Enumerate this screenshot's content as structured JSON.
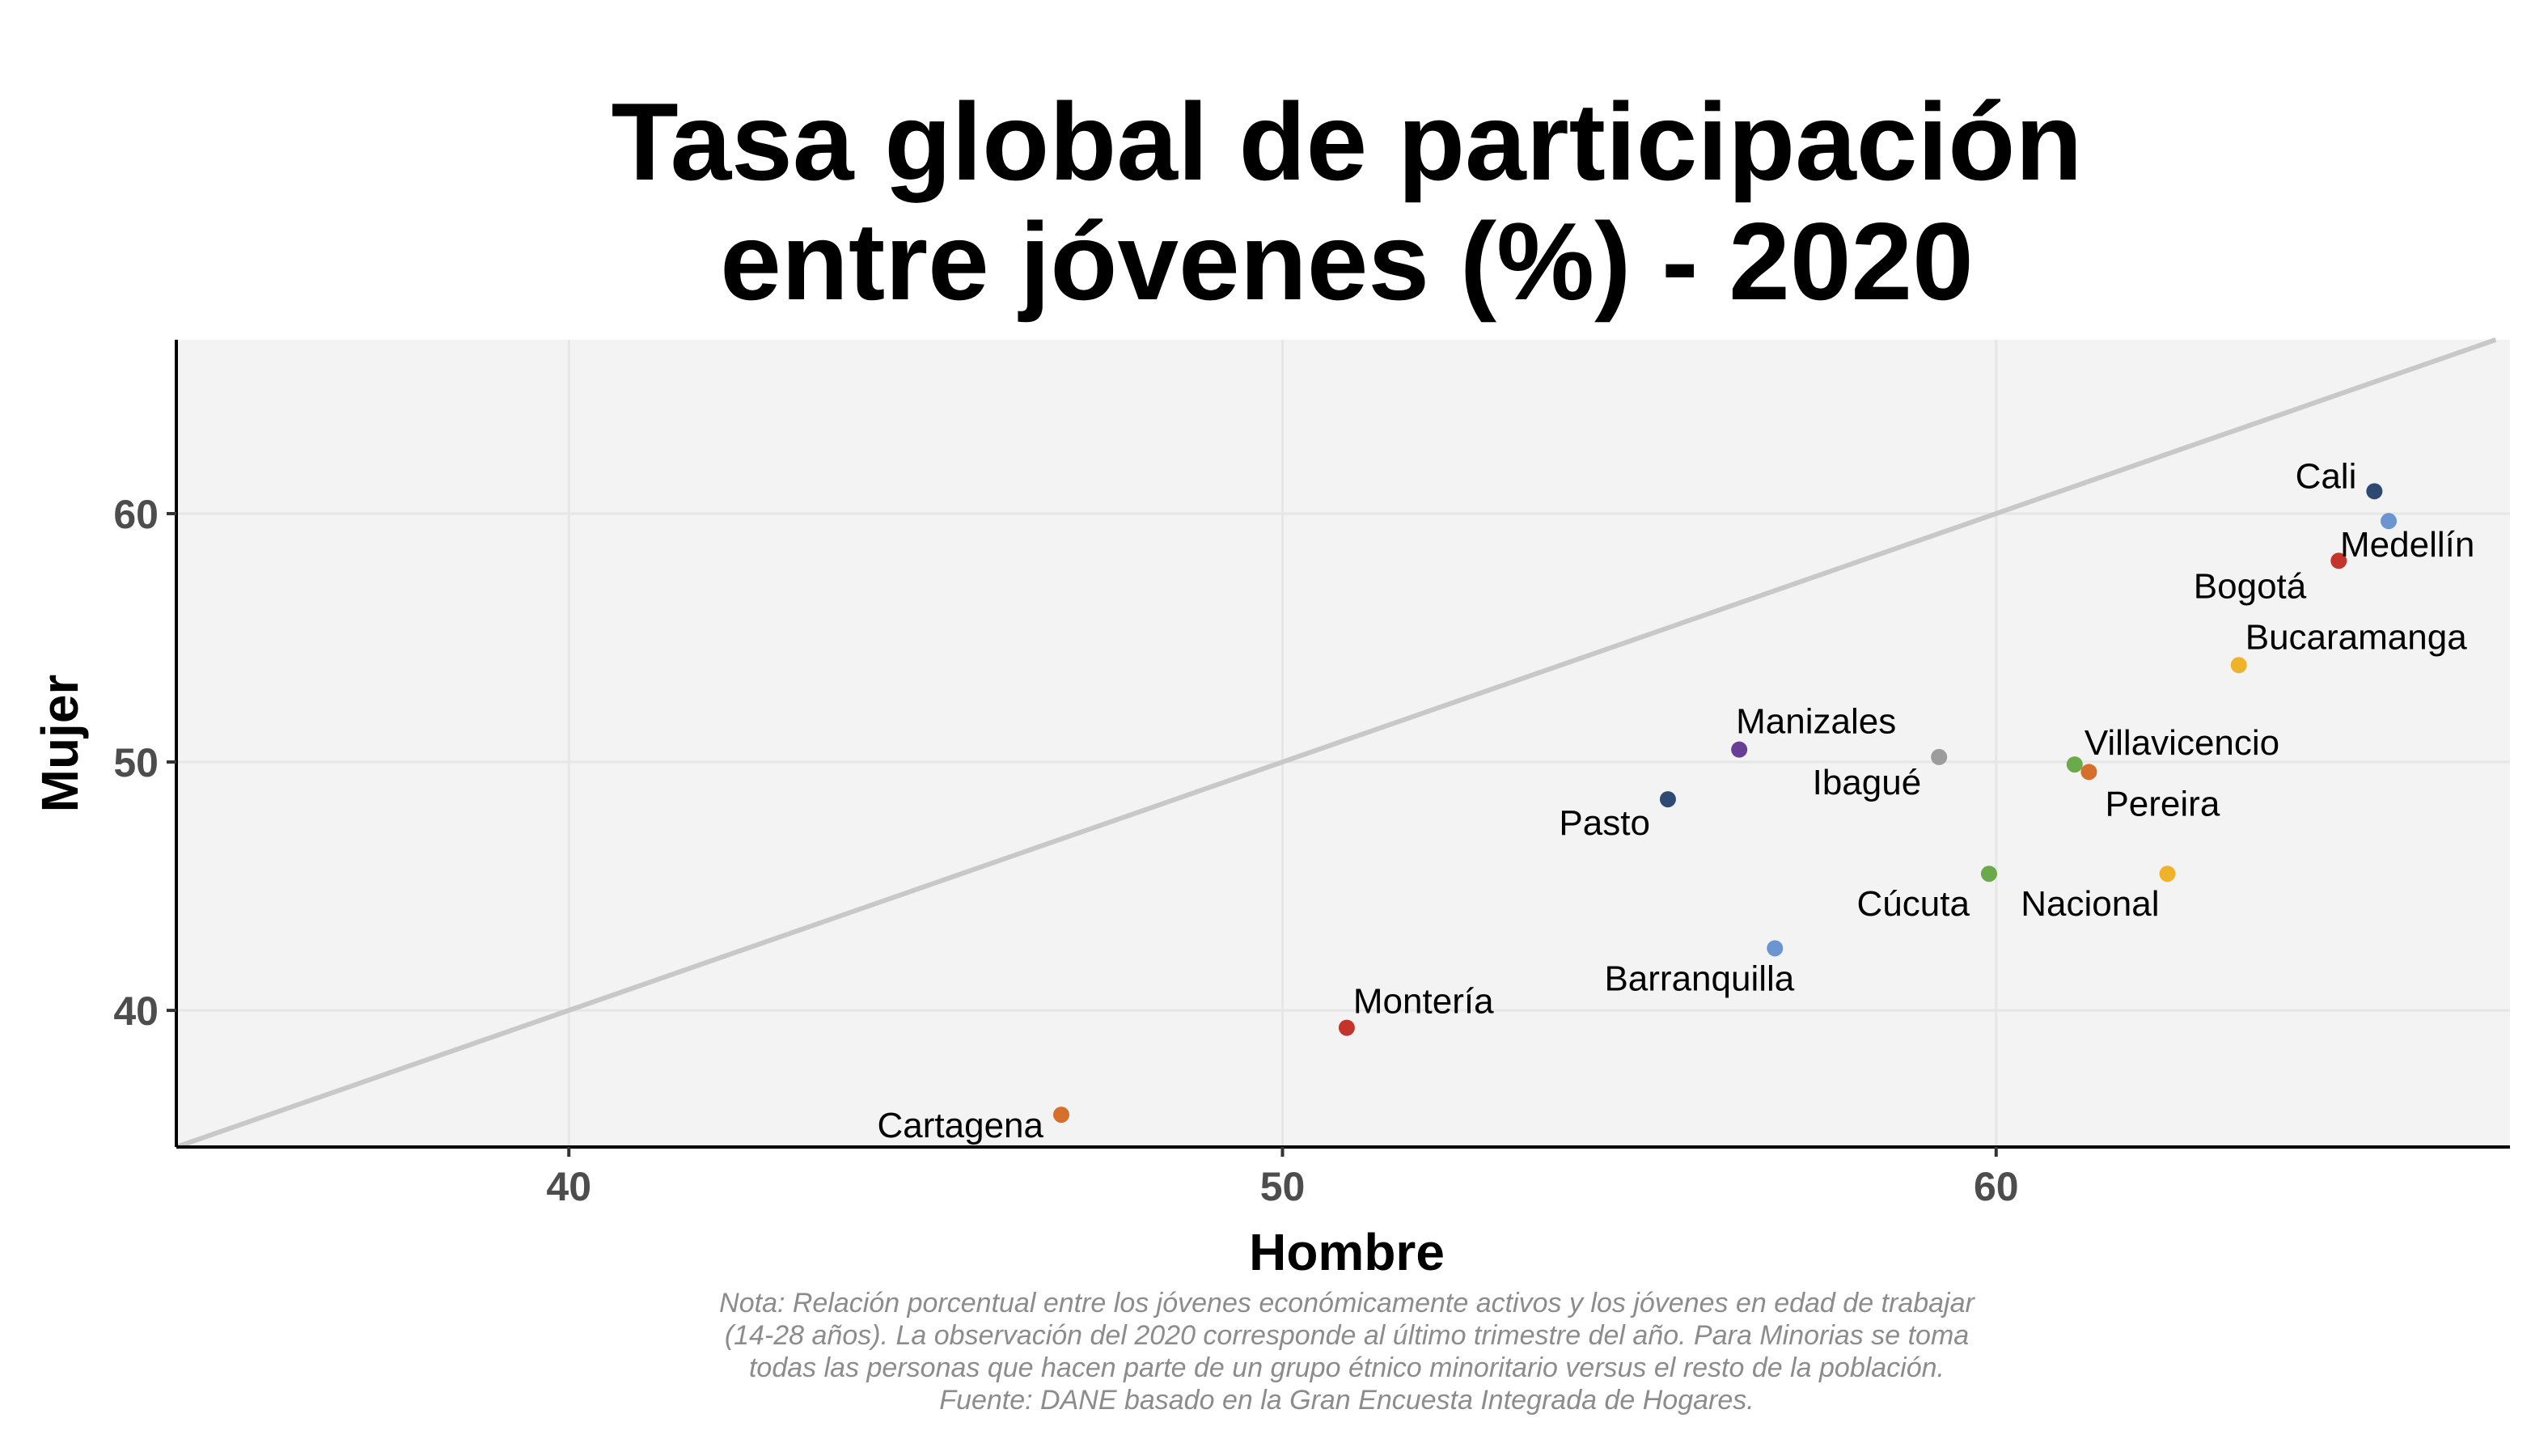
{
  "chart_data": {
    "type": "scatter",
    "title_lines": [
      "Tasa global de participación",
      "entre jóvenes (%) - 2020"
    ],
    "xlabel": "Hombre",
    "ylabel": "Mujer",
    "xlim": [
      34.5,
      67.2
    ],
    "ylim": [
      34.5,
      67
    ],
    "x_ticks": [
      40,
      50,
      60
    ],
    "y_ticks": [
      40,
      50,
      60
    ],
    "grid": true,
    "reference_line": "y = x",
    "points": [
      {
        "label": "Cali",
        "x": 65.3,
        "y": 60.9,
        "color": "#2e4a72"
      },
      {
        "label": "Medellín",
        "x": 65.5,
        "y": 59.7,
        "color": "#6b95d1"
      },
      {
        "label": "Bogotá",
        "x": 64.8,
        "y": 58.1,
        "color": "#c4342b"
      },
      {
        "label": "Bucaramanga",
        "x": 63.4,
        "y": 53.9,
        "color": "#eeb32a"
      },
      {
        "label": "Manizales",
        "x": 56.4,
        "y": 50.5,
        "color": "#6a3d96"
      },
      {
        "label": "Villavicencio",
        "x": 61.1,
        "y": 49.9,
        "color": "#6aaa4a"
      },
      {
        "label": "Ibagué",
        "x": 59.2,
        "y": 50.2,
        "color": "#9c9c9c"
      },
      {
        "label": "Pereira",
        "x": 61.3,
        "y": 49.6,
        "color": "#d66e2c"
      },
      {
        "label": "Pasto",
        "x": 55.4,
        "y": 48.5,
        "color": "#2e4a72"
      },
      {
        "label": "Cúcuta",
        "x": 59.9,
        "y": 45.5,
        "color": "#6aaa4a"
      },
      {
        "label": "Nacional",
        "x": 62.4,
        "y": 45.5,
        "color": "#eeb32a"
      },
      {
        "label": "Barranquilla",
        "x": 56.9,
        "y": 42.5,
        "color": "#6b95d1"
      },
      {
        "label": "Montería",
        "x": 50.9,
        "y": 39.3,
        "color": "#c4342b"
      },
      {
        "label": "Cartagena",
        "x": 46.9,
        "y": 35.8,
        "color": "#d66e2c"
      }
    ]
  },
  "note_lines": [
    "Nota: Relación porcentual entre los jóvenes económicamente activos y los jóvenes en edad de trabajar",
    "(14-28 años). La observación del 2020 corresponde al último trimestre del año. Para Minorias se toma",
    "todas las personas que hacen parte de un grupo étnico minoritario versus el resto de la población.",
    "Fuente: DANE basado en la Gran Encuesta Integrada de Hogares."
  ]
}
